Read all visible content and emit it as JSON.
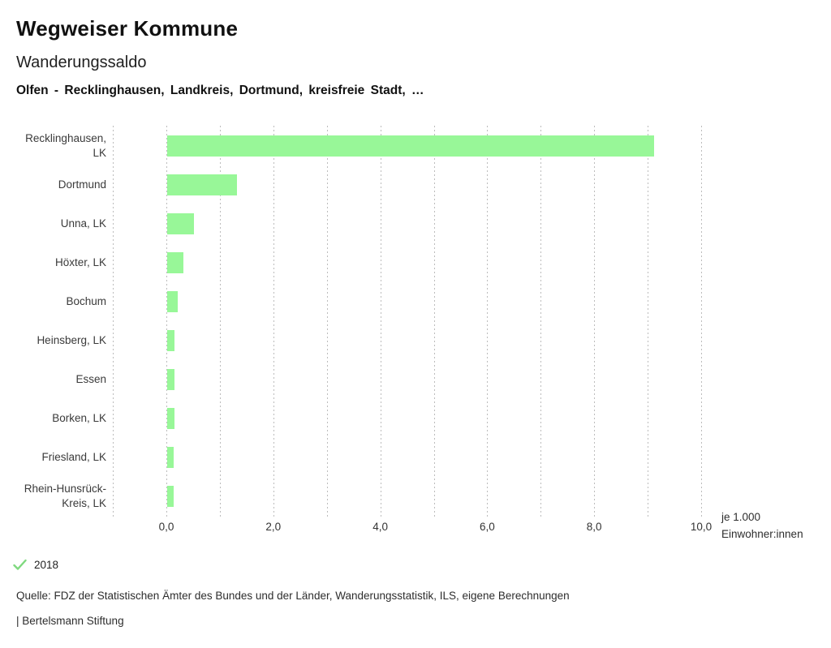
{
  "header": {
    "title": "Wegweiser Kommune",
    "subtitle": "Wanderungssaldo",
    "selection": "Olfen - Recklinghausen, Landkreis, Dortmund, kreisfreie Stadt, …"
  },
  "chart_data": {
    "type": "bar",
    "orientation": "horizontal",
    "title": "Wanderungssaldo",
    "categories": [
      "Recklinghausen, LK",
      "Dortmund",
      "Unna, LK",
      "Höxter, LK",
      "Bochum",
      "Heinsberg, LK",
      "Essen",
      "Borken, LK",
      "Friesland, LK",
      "Rhein-Hunsrück-Kreis, LK"
    ],
    "series": [
      {
        "name": "2018",
        "values": [
          9.1,
          1.3,
          0.5,
          0.3,
          0.2,
          0.14,
          0.13,
          0.13,
          0.12,
          0.12
        ]
      }
    ],
    "xlabel": "je 1.000 Einwohner:innen",
    "xlabel_lines": [
      "je 1.000",
      "Einwohner:innen"
    ],
    "xlim": [
      -1,
      10
    ],
    "xticks": [
      0,
      2,
      4,
      6,
      8,
      10
    ],
    "xtick_labels": [
      "0,0",
      "2,0",
      "4,0",
      "6,0",
      "8,0",
      "10,0"
    ],
    "grid": "vertical dotted gridlines every 1.0",
    "legend_position": "bottom-left"
  },
  "legend": {
    "icon": "check-icon",
    "label": "2018"
  },
  "footer": {
    "source": "Quelle: FDZ der Statistischen Ämter des Bundes und der Länder, Wanderungsstatistik, ILS, eigene Berechnungen",
    "attribution": "| Bertelsmann Stiftung"
  },
  "colors": {
    "bar": "#98f798",
    "check": "#7fd97f",
    "grid": "#bcbcbc",
    "title": "#111111",
    "label": "#3a3a3a"
  }
}
